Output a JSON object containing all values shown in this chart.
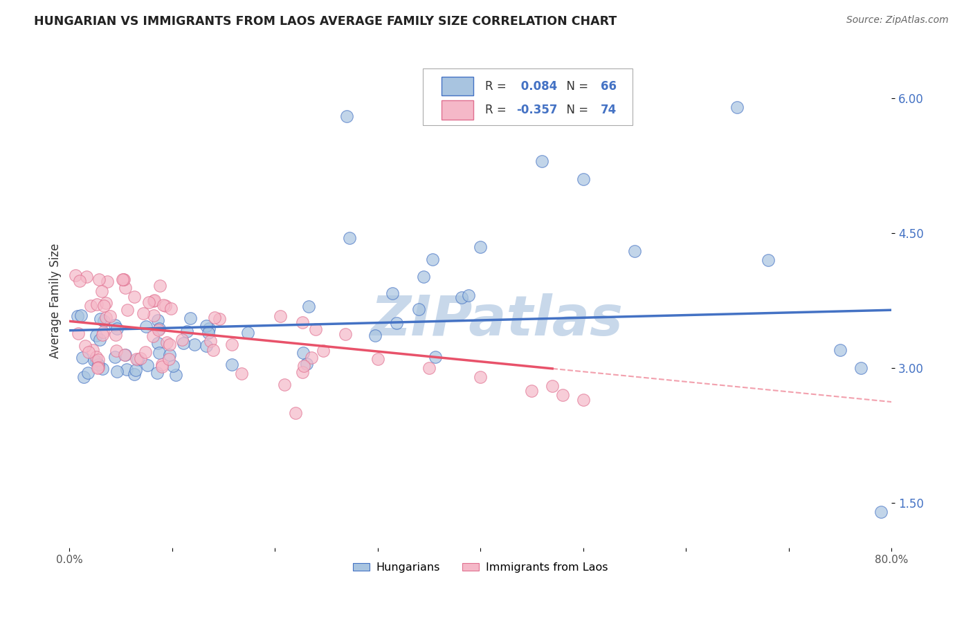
{
  "title": "HUNGARIAN VS IMMIGRANTS FROM LAOS AVERAGE FAMILY SIZE CORRELATION CHART",
  "source_text": "Source: ZipAtlas.com",
  "ylabel": "Average Family Size",
  "xlim": [
    0.0,
    0.8
  ],
  "ylim": [
    1.0,
    6.5
  ],
  "yticks_right": [
    1.5,
    3.0,
    4.5,
    6.0
  ],
  "xtick_labels": [
    "0.0%",
    "",
    "",
    "",
    "",
    "",
    "",
    "",
    "80.0%"
  ],
  "legend_r_hungarian": "0.084",
  "legend_n_hungarian": "66",
  "legend_r_laos": "-0.357",
  "legend_n_laos": "74",
  "color_hungarian_fill": "#a8c4e0",
  "color_hungarian_edge": "#4472c4",
  "color_laos_fill": "#f5b8c8",
  "color_laos_edge": "#e07090",
  "color_trend_hungarian": "#4472c4",
  "color_trend_laos": "#e8526a",
  "watermark": "ZIPatlas",
  "watermark_color": "#c8d8ea",
  "background_color": "#ffffff",
  "grid_color": "#cccccc",
  "legend_text_color": "#4472c4",
  "right_axis_color": "#4472c4"
}
